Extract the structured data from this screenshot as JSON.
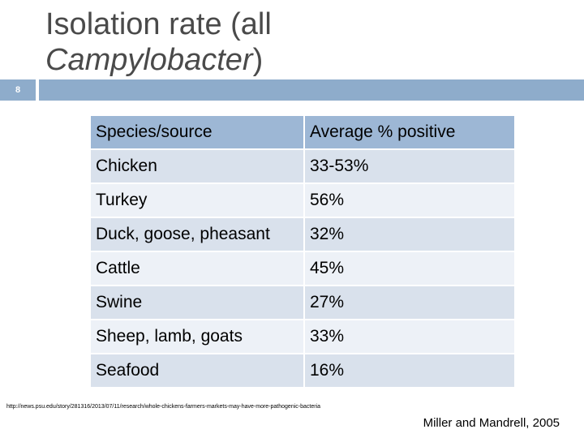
{
  "slide": {
    "number": "8",
    "title_line1": "Isolation rate (all",
    "title_line2_italic": "Campylobacter",
    "title_line2_suffix": ")"
  },
  "table": {
    "headers": [
      "Species/source",
      "Average % positive"
    ],
    "rows": [
      [
        "Chicken",
        "33-53%"
      ],
      [
        "Turkey",
        "56%"
      ],
      [
        "Duck, goose, pheasant",
        "32%"
      ],
      [
        "Cattle",
        "45%"
      ],
      [
        "Swine",
        "27%"
      ],
      [
        "Sheep, lamb, goats",
        "33%"
      ],
      [
        "Seafood",
        "16%"
      ]
    ]
  },
  "source_url": "http://news.psu.edu/story/281316/2013/07/11/research/whole-chickens-farmers-markets-may-have-more-pathogenic-bacteria",
  "citation": "Miller and Mandrell, 2005",
  "colors": {
    "accent_bar": "#8eaccb",
    "header_bg": "#9db7d5",
    "row_dark": "#d9e1ec",
    "row_light": "#edf1f7"
  }
}
